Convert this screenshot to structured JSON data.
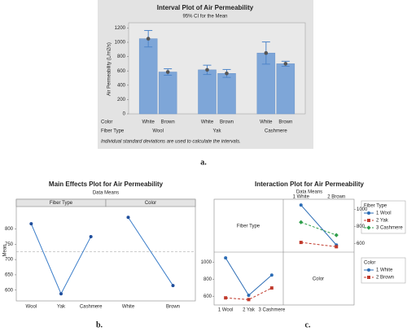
{
  "chart_data": [
    {
      "type": "interval",
      "panel_label": "a.",
      "title": "Interval Plot of Air Permeability",
      "subtitle": "95% CI for the Mean",
      "y_label": "Air Permeability (L/m2/s)",
      "row_labels": [
        "Color",
        "Fiber Type"
      ],
      "categories": [
        "White",
        "Brown",
        "White",
        "Brown",
        "White",
        "Brown"
      ],
      "groups": [
        "Wool",
        "Yak",
        "Cashmere"
      ],
      "values": [
        1050,
        585,
        615,
        565,
        850,
        700
      ],
      "errors": [
        115,
        45,
        65,
        55,
        155,
        35
      ],
      "ylim": [
        0,
        1250
      ],
      "yticks": [
        0,
        200,
        400,
        600,
        800,
        1000,
        1200
      ],
      "color": "#7ea6d8",
      "error_color": "#4f86c9",
      "footnote": "Individual standard deviations are used to calculate the intervals."
    },
    {
      "type": "main_effects",
      "panel_label": "b.",
      "title": "Main Effects Plot for Air Permeability",
      "subtitle": "Data Means",
      "y_label": "Mean",
      "panels": [
        {
          "title": "Fiber Type",
          "categories": [
            "Wool",
            "Yak",
            "Cashmere"
          ],
          "values": [
            817,
            588,
            775
          ]
        },
        {
          "title": "Color",
          "categories": [
            "White",
            "Brown"
          ],
          "values": [
            838,
            615
          ]
        }
      ],
      "reference_line": 726,
      "ylim": [
        570,
        860
      ],
      "yticks": [
        600,
        650,
        700,
        750,
        800
      ],
      "color": "#3a7dc9"
    },
    {
      "type": "interaction",
      "panel_label": "c.",
      "title": "Interaction Plot for Air Permeability",
      "subtitle": "Data Means",
      "factors": [
        "Fiber Type",
        "Color"
      ],
      "panels": [
        {
          "categories": [
            "1 White",
            "2 Brown"
          ],
          "legend_title": "Fiber Type",
          "ylim": [
            540,
            1080
          ],
          "yticks": [
            600,
            800,
            1000
          ],
          "series": [
            {
              "name": "1 Wool",
              "color": "#2b6cb5",
              "dash": null,
              "marker": "circle",
              "values": [
                1050,
                585
              ]
            },
            {
              "name": "2 Yak",
              "color": "#c0392b",
              "dash": "3,2",
              "marker": "square",
              "values": [
                615,
                565
              ]
            },
            {
              "name": "3 Cashmere",
              "color": "#2e9e4a",
              "dash": "3,2",
              "marker": "diamond",
              "values": [
                850,
                700
              ]
            }
          ]
        },
        {
          "categories": [
            "1 Wool",
            "2 Yak",
            "3 Cashmere"
          ],
          "legend_title": "Color",
          "ylim": [
            540,
            1080
          ],
          "yticks": [
            600,
            800,
            1000
          ],
          "series": [
            {
              "name": "1 White",
              "color": "#2b6cb5",
              "dash": null,
              "marker": "circle",
              "values": [
                1050,
                615,
                850
              ]
            },
            {
              "name": "2 Brown",
              "color": "#c0392b",
              "dash": "3,2",
              "marker": "square",
              "values": [
                585,
                565,
                700
              ]
            }
          ]
        }
      ]
    }
  ]
}
